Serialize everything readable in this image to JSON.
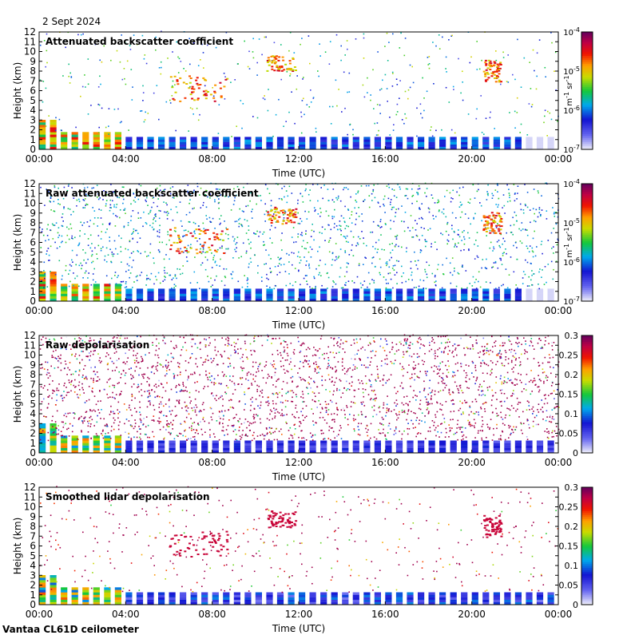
{
  "page": {
    "date": "2 Sept 2024",
    "footer": "Vantaa CL61D ceilometer"
  },
  "chart_data": [
    {
      "type": "heatmap",
      "title": "Attenuated backscatter coefficient",
      "xlabel": "Time (UTC)",
      "ylabel": "Height (km)",
      "x_ticks": [
        "00:00",
        "04:00",
        "08:00",
        "12:00",
        "16:00",
        "20:00",
        "00:00"
      ],
      "y_ticks": [
        "0",
        "1",
        "2",
        "3",
        "4",
        "5",
        "6",
        "7",
        "8",
        "9",
        "10",
        "11",
        "12"
      ],
      "xlim": [
        "00:00",
        "24:00"
      ],
      "ylim": [
        0,
        12
      ],
      "colorbar": {
        "scale": "log",
        "range": [
          1e-07,
          0.0001
        ],
        "ticks": [
          {
            "base": "10",
            "exp": "-4"
          },
          {
            "base": "10",
            "exp": "-5"
          },
          {
            "base": "10",
            "exp": "-6"
          },
          {
            "base": "10",
            "exp": "-7"
          }
        ],
        "unit_parts": {
          "m": "m",
          "m_exp": "-1",
          "sr": "sr",
          "sr_exp": "-1"
        }
      },
      "features": [
        {
          "desc": "boundary layer aerosol",
          "time_start": "00:00",
          "time_end": "22:00",
          "height_km": [
            0,
            1.6
          ]
        },
        {
          "desc": "mid-level cloud",
          "time_start": "06:00",
          "time_end": "08:40",
          "height_km": [
            4.8,
            7.4
          ]
        },
        {
          "desc": "cloud",
          "time_start": "10:30",
          "time_end": "11:50",
          "height_km": [
            7.8,
            9.5
          ]
        },
        {
          "desc": "cloud",
          "time_start": "20:30",
          "time_end": "21:20",
          "height_km": [
            6.8,
            9.0
          ]
        }
      ],
      "noise": "sparse"
    },
    {
      "type": "heatmap",
      "title": "Raw attenuated backscatter coefficient",
      "xlabel": "Time (UTC)",
      "ylabel": "Height (km)",
      "x_ticks": [
        "00:00",
        "04:00",
        "08:00",
        "12:00",
        "16:00",
        "20:00",
        "00:00"
      ],
      "y_ticks": [
        "0",
        "1",
        "2",
        "3",
        "4",
        "5",
        "6",
        "7",
        "8",
        "9",
        "10",
        "11",
        "12"
      ],
      "xlim": [
        "00:00",
        "24:00"
      ],
      "ylim": [
        0,
        12
      ],
      "colorbar": {
        "scale": "log",
        "range": [
          1e-07,
          0.0001
        ],
        "ticks": [
          {
            "base": "10",
            "exp": "-4"
          },
          {
            "base": "10",
            "exp": "-5"
          },
          {
            "base": "10",
            "exp": "-6"
          },
          {
            "base": "10",
            "exp": "-7"
          }
        ],
        "unit_parts": {
          "m": "m",
          "m_exp": "-1",
          "sr": "sr",
          "sr_exp": "-1"
        }
      },
      "noise": "dense"
    },
    {
      "type": "heatmap",
      "title": "Raw depolarisation",
      "xlabel": "Time (UTC)",
      "ylabel": "Height (km)",
      "x_ticks": [
        "00:00",
        "04:00",
        "08:00",
        "12:00",
        "16:00",
        "20:00",
        "00:00"
      ],
      "y_ticks": [
        "0",
        "1",
        "2",
        "3",
        "4",
        "5",
        "6",
        "7",
        "8",
        "9",
        "10",
        "11",
        "12"
      ],
      "xlim": [
        "00:00",
        "24:00"
      ],
      "ylim": [
        0,
        12
      ],
      "colorbar": {
        "scale": "linear",
        "range": [
          0,
          0.3
        ],
        "ticks": [
          "0.3",
          "0.25",
          "0.2",
          "0.15",
          "0.1",
          "0.05",
          "0"
        ]
      },
      "noise": "saturated"
    },
    {
      "type": "heatmap",
      "title": "Smoothed lidar depolarisation",
      "xlabel": "Time (UTC)",
      "ylabel": "Height (km)",
      "x_ticks": [
        "00:00",
        "04:00",
        "08:00",
        "12:00",
        "16:00",
        "20:00",
        "00:00"
      ],
      "y_ticks": [
        "0",
        "1",
        "2",
        "3",
        "4",
        "5",
        "6",
        "7",
        "8",
        "9",
        "10",
        "11",
        "12"
      ],
      "xlim": [
        "00:00",
        "24:00"
      ],
      "ylim": [
        0,
        12
      ],
      "colorbar": {
        "scale": "linear",
        "range": [
          0,
          0.3
        ],
        "ticks": [
          "0.3",
          "0.25",
          "0.2",
          "0.15",
          "0.1",
          "0.05",
          "0"
        ]
      },
      "noise": "sparse"
    }
  ]
}
